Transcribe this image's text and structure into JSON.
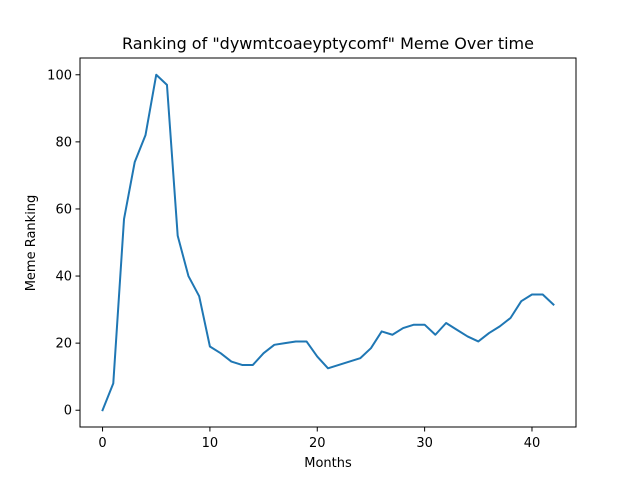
{
  "chart_data": {
    "type": "line",
    "title": "Ranking of \"dywmtcoaeyptycomf\" Meme Over time",
    "xlabel": "Months",
    "ylabel": "Meme Ranking",
    "xlim": [
      -2.1,
      44.1
    ],
    "ylim": [
      -5,
      105
    ],
    "xticks": [
      0,
      10,
      20,
      30,
      40
    ],
    "yticks": [
      0,
      20,
      40,
      60,
      80,
      100
    ],
    "grid": false,
    "line_color": "#1f77b4",
    "series": [
      {
        "x": [
          0,
          1,
          2,
          3,
          4,
          5,
          6,
          7,
          8,
          9,
          10,
          11,
          12,
          13,
          14,
          15,
          16,
          17,
          18,
          19,
          20,
          21,
          22,
          23,
          24,
          25,
          26,
          27,
          28,
          29,
          30,
          31,
          32,
          33,
          34,
          35,
          36,
          37,
          38,
          39,
          40,
          41,
          42
        ],
        "values": [
          0,
          8,
          57,
          74,
          82,
          100,
          97,
          52,
          40,
          34,
          19,
          17,
          14.5,
          13.5,
          13.5,
          17,
          19.5,
          20,
          20.5,
          20.5,
          16,
          12.5,
          13.5,
          14.5,
          15.5,
          18.5,
          23.5,
          22.5,
          24.5,
          25.5,
          25.5,
          22.5,
          26,
          24,
          22,
          20.5,
          23,
          25,
          27.5,
          32.5,
          34.5,
          34.5,
          31.5
        ]
      }
    ]
  }
}
